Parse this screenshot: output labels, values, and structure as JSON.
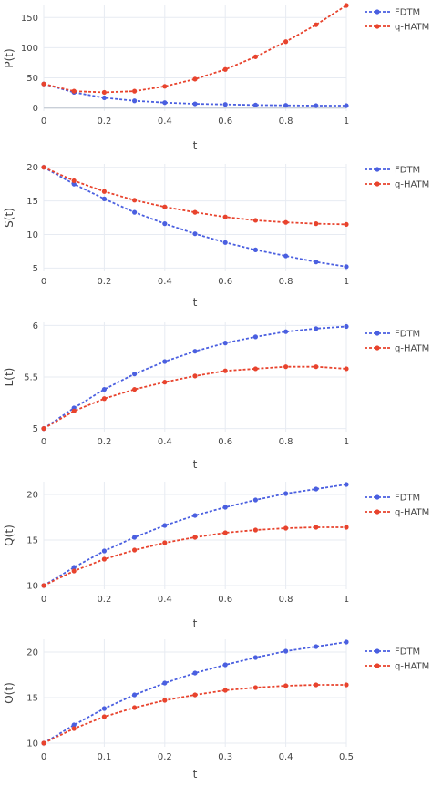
{
  "chart_data": [
    {
      "type": "line",
      "xlabel": "t",
      "ylabel": "P(t)",
      "xlim": [
        0,
        1
      ],
      "ylim": [
        -5,
        170
      ],
      "xticks": [
        0,
        0.2,
        0.4,
        0.6,
        0.8,
        1
      ],
      "xtick_labels": [
        "0",
        "0.2",
        "0.4",
        "0.6",
        "0.8",
        "1"
      ],
      "yticks": [
        0,
        50,
        100,
        150
      ],
      "ytick_labels": [
        "0",
        "50",
        "100",
        "150"
      ],
      "legend": "top-right",
      "x": [
        0,
        0.1,
        0.2,
        0.3,
        0.4,
        0.5,
        0.6,
        0.7,
        0.8,
        0.9,
        1
      ],
      "series": [
        {
          "name": "FDTM",
          "color": "#4a5fe0",
          "values": [
            40,
            26,
            17,
            12,
            9,
            7,
            6,
            5,
            4.5,
            4,
            4
          ]
        },
        {
          "name": "q-HATM",
          "color": "#e8432d",
          "values": [
            40,
            28,
            26,
            28,
            36,
            48,
            64,
            85,
            110,
            138,
            170
          ]
        }
      ]
    },
    {
      "type": "line",
      "xlabel": "t",
      "ylabel": "S(t)",
      "xlim": [
        0,
        1
      ],
      "ylim": [
        4.5,
        20.5
      ],
      "xticks": [
        0,
        0.2,
        0.4,
        0.6,
        0.8,
        1
      ],
      "xtick_labels": [
        "0",
        "0.2",
        "0.4",
        "0.6",
        "0.8",
        "1"
      ],
      "yticks": [
        5,
        10,
        15,
        20
      ],
      "ytick_labels": [
        "5",
        "10",
        "15",
        "20"
      ],
      "legend": "top-right",
      "x": [
        0,
        0.1,
        0.2,
        0.3,
        0.4,
        0.5,
        0.6,
        0.7,
        0.8,
        0.9,
        1
      ],
      "series": [
        {
          "name": "FDTM",
          "color": "#4a5fe0",
          "values": [
            20,
            17.5,
            15.3,
            13.3,
            11.6,
            10.1,
            8.8,
            7.7,
            6.8,
            5.9,
            5.2
          ]
        },
        {
          "name": "q-HATM",
          "color": "#e8432d",
          "values": [
            20,
            18,
            16.4,
            15.1,
            14.1,
            13.3,
            12.6,
            12.1,
            11.8,
            11.6,
            11.5
          ]
        }
      ]
    },
    {
      "type": "line",
      "xlabel": "t",
      "ylabel": "L(t)",
      "xlim": [
        0,
        1
      ],
      "ylim": [
        4.97,
        6.03
      ],
      "xticks": [
        0,
        0.2,
        0.4,
        0.6,
        0.8,
        1
      ],
      "xtick_labels": [
        "0",
        "0.2",
        "0.4",
        "0.6",
        "0.8",
        "1"
      ],
      "yticks": [
        5,
        5.5,
        6
      ],
      "ytick_labels": [
        "5",
        "5.5",
        "6"
      ],
      "legend": "top-right",
      "x": [
        0,
        0.1,
        0.2,
        0.3,
        0.4,
        0.5,
        0.6,
        0.7,
        0.8,
        0.9,
        1
      ],
      "series": [
        {
          "name": "FDTM",
          "color": "#4a5fe0",
          "values": [
            5,
            5.2,
            5.38,
            5.53,
            5.65,
            5.75,
            5.83,
            5.89,
            5.94,
            5.97,
            5.99
          ]
        },
        {
          "name": "q-HATM",
          "color": "#e8432d",
          "values": [
            5,
            5.17,
            5.29,
            5.38,
            5.45,
            5.51,
            5.56,
            5.58,
            5.6,
            5.6,
            5.58
          ]
        }
      ]
    },
    {
      "type": "line",
      "xlabel": "t",
      "ylabel": "Q(t)",
      "xlim": [
        0,
        1
      ],
      "ylim": [
        9.6,
        21.4
      ],
      "xticks": [
        0,
        0.2,
        0.4,
        0.6,
        0.8,
        1
      ],
      "xtick_labels": [
        "0",
        "0.2",
        "0.4",
        "0.6",
        "0.8",
        "1"
      ],
      "yticks": [
        10,
        15,
        20
      ],
      "ytick_labels": [
        "10",
        "15",
        "20"
      ],
      "legend": "top-right",
      "x": [
        0,
        0.1,
        0.2,
        0.3,
        0.4,
        0.5,
        0.6,
        0.7,
        0.8,
        0.9,
        1
      ],
      "series": [
        {
          "name": "FDTM",
          "color": "#4a5fe0",
          "values": [
            10,
            12,
            13.8,
            15.3,
            16.6,
            17.7,
            18.6,
            19.4,
            20.1,
            20.6,
            21.1
          ]
        },
        {
          "name": "q-HATM",
          "color": "#e8432d",
          "values": [
            10,
            11.6,
            12.9,
            13.9,
            14.7,
            15.3,
            15.8,
            16.1,
            16.3,
            16.4,
            16.4
          ]
        }
      ]
    },
    {
      "type": "line",
      "xlabel": "t",
      "ylabel": "O(t)",
      "xlim": [
        0,
        0.5
      ],
      "ylim": [
        9.6,
        21.4
      ],
      "xticks": [
        0,
        0.1,
        0.2,
        0.3,
        0.4,
        0.5
      ],
      "xtick_labels": [
        "0",
        "0.1",
        "0.2",
        "0.3",
        "0.4",
        "0.5"
      ],
      "yticks": [
        10,
        15,
        20
      ],
      "ytick_labels": [
        "10",
        "15",
        "20"
      ],
      "legend": "top-right",
      "x": [
        0,
        0.05,
        0.1,
        0.15,
        0.2,
        0.25,
        0.3,
        0.35,
        0.4,
        0.45,
        0.5
      ],
      "series": [
        {
          "name": "FDTM",
          "color": "#4a5fe0",
          "values": [
            10,
            12,
            13.8,
            15.3,
            16.6,
            17.7,
            18.6,
            19.4,
            20.1,
            20.6,
            21.1
          ]
        },
        {
          "name": "q-HATM",
          "color": "#e8432d",
          "values": [
            10,
            11.6,
            12.9,
            13.9,
            14.7,
            15.3,
            15.8,
            16.1,
            16.3,
            16.4,
            16.4
          ]
        }
      ]
    }
  ]
}
